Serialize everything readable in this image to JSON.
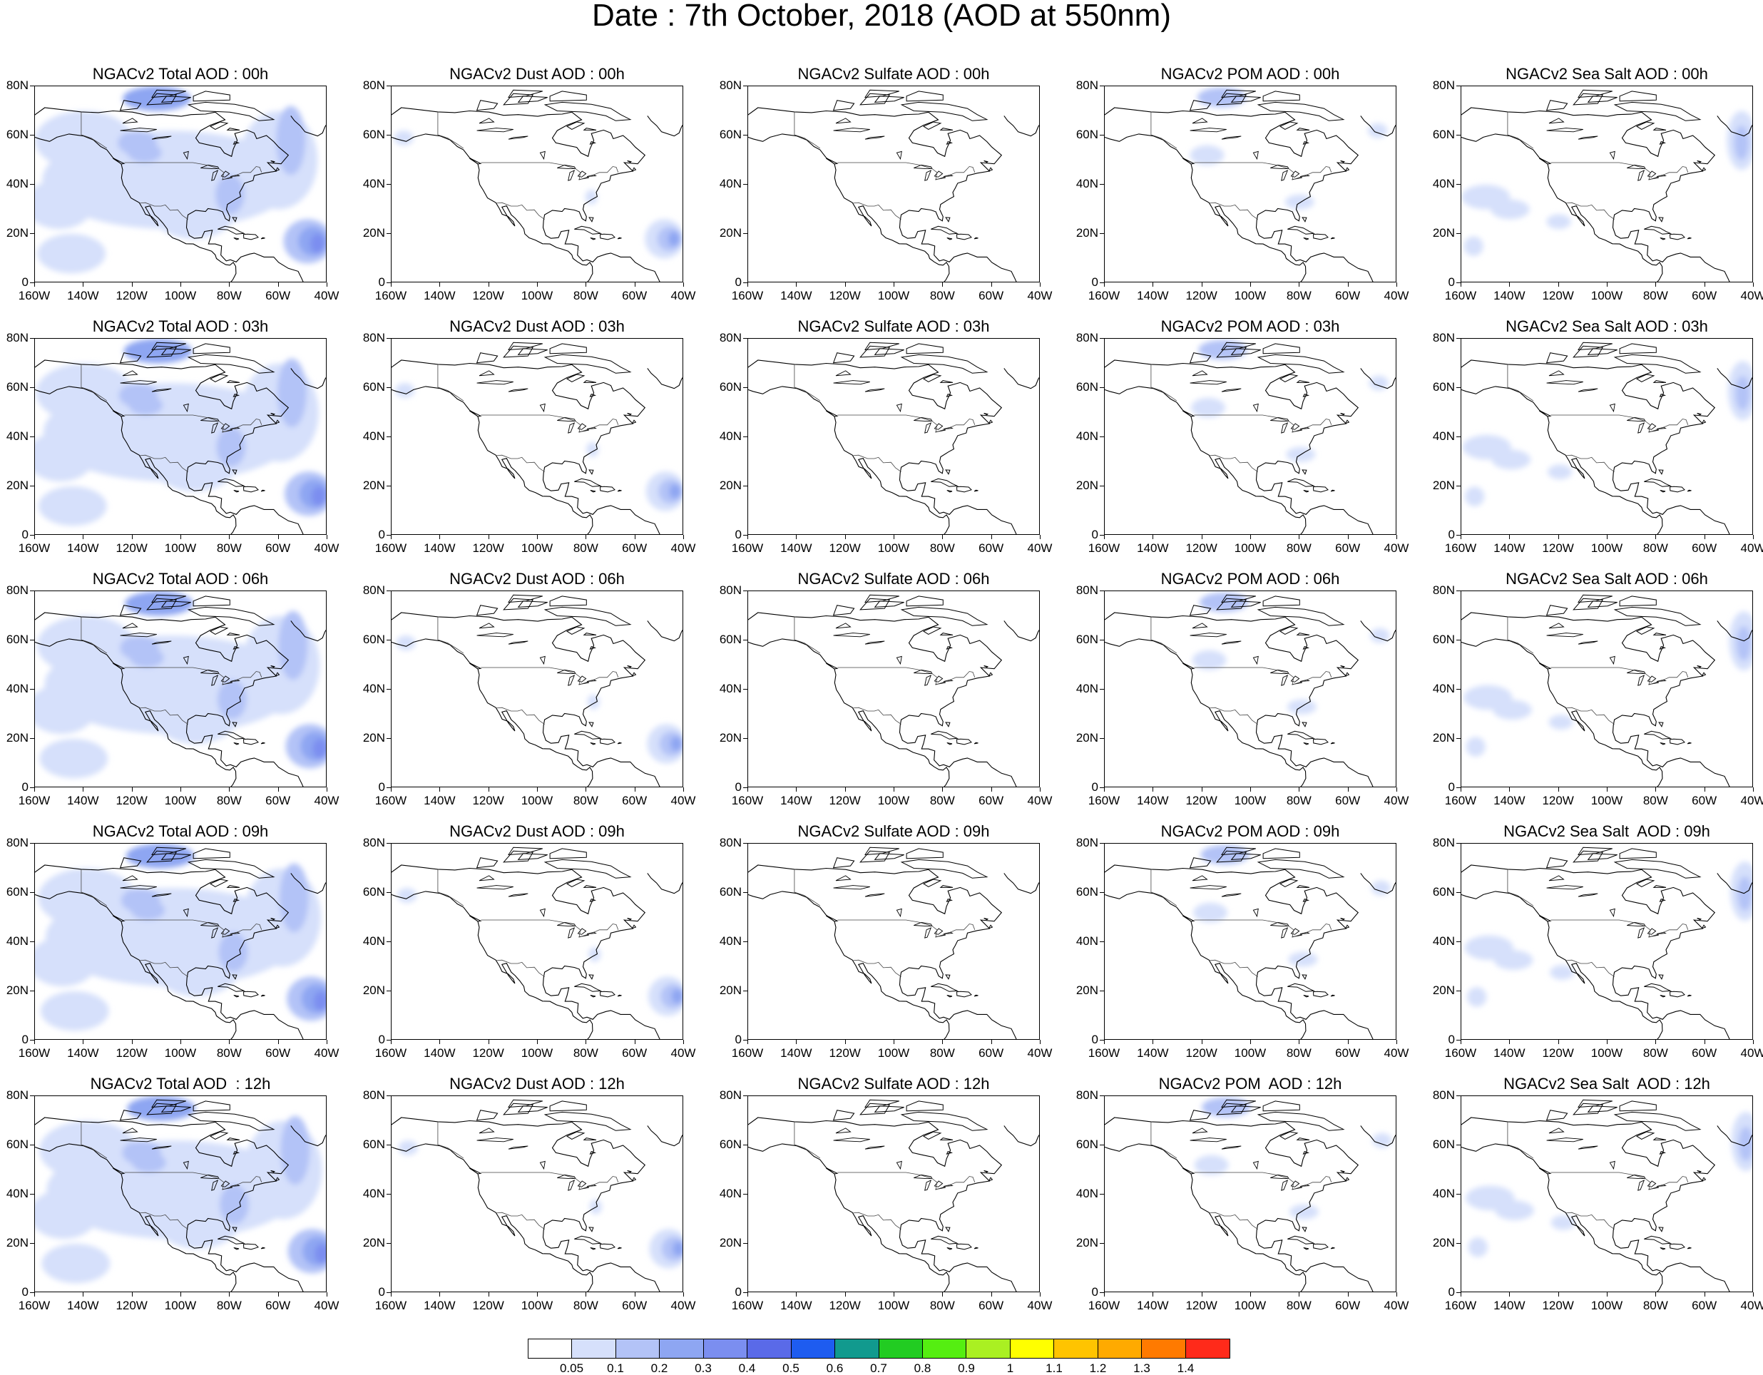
{
  "title": "Date : 7th October, 2018 (AOD at 550nm)",
  "y_tick_labels": [
    "80N",
    "60N",
    "40N",
    "20N",
    "0"
  ],
  "x_tick_labels": [
    "160W",
    "140W",
    "120W",
    "100W",
    "80W",
    "60W",
    "40W"
  ],
  "panels": [
    [
      "NGACv2 Total AOD : 00h",
      "NGACv2 Dust AOD : 00h",
      "NGACv2 Sulfate AOD : 00h",
      "NGACv2 POM AOD : 00h",
      "NGACv2 Sea Salt AOD : 00h"
    ],
    [
      "NGACv2 Total AOD : 03h",
      "NGACv2 Dust AOD : 03h",
      "NGACv2 Sulfate AOD : 03h",
      "NGACv2 POM AOD : 03h",
      "NGACv2 Sea Salt AOD : 03h"
    ],
    [
      "NGACv2 Total AOD : 06h",
      "NGACv2 Dust AOD : 06h",
      "NGACv2 Sulfate AOD : 06h",
      "NGACv2 POM AOD : 06h",
      "NGACv2 Sea Salt AOD : 06h"
    ],
    [
      "NGACv2 Total AOD : 09h",
      "NGACv2 Dust AOD : 09h",
      "NGACv2 Sulfate AOD : 09h",
      "NGACv2 POM AOD : 09h",
      "NGACv2 Sea Salt  AOD : 09h"
    ],
    [
      "NGACv2 Total AOD  : 12h",
      "NGACv2 Dust AOD : 12h",
      "NGACv2 Sulfate AOD : 12h",
      "NGACv2 POM  AOD : 12h",
      "NGACv2 Sea Salt  AOD : 12h"
    ]
  ],
  "colorbar": {
    "labels": [
      "0.05",
      "0.1",
      "0.2",
      "0.3",
      "0.4",
      "0.5",
      "0.6",
      "0.7",
      "0.8",
      "0.9",
      "1",
      "1.1",
      "1.2",
      "1.3",
      "1.4"
    ],
    "colors": [
      "#ffffff",
      "#d6e0fb",
      "#b3c3f7",
      "#8ea6f2",
      "#7b8ef0",
      "#5a6ae8",
      "#1e5cf0",
      "#119a8e",
      "#22cc22",
      "#55ee11",
      "#aaf022",
      "#ccf055",
      "#ffff00",
      "#ffc400",
      "#ffaa00",
      "#ff7a00",
      "#ff2a1a"
    ]
  }
}
